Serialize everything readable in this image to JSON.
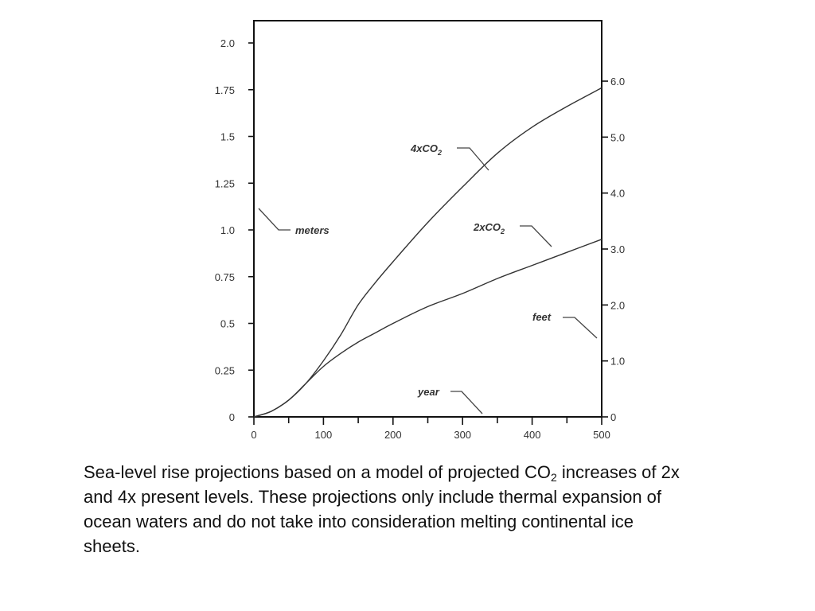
{
  "chart_data": {
    "type": "line",
    "x": [
      0,
      25,
      50,
      75,
      100,
      125,
      150,
      175,
      200,
      250,
      300,
      350,
      400,
      450,
      500
    ],
    "xlim": [
      0,
      500
    ],
    "xticks": [
      0,
      100,
      200,
      300,
      400,
      500
    ],
    "x_minor_ticks": [
      50,
      150,
      250,
      350,
      450
    ],
    "ylim_left": [
      0,
      2.0
    ],
    "yticks_left": [
      "0",
      "0.25",
      "0.5",
      "0.75",
      "1.0",
      "1.25",
      "1.5",
      "1.75",
      "2.0"
    ],
    "ylim_right": [
      0,
      6.56
    ],
    "yticks_right": [
      "0",
      "1.0",
      "2.0",
      "3.0",
      "4.0",
      "5.0",
      "6.0"
    ],
    "series": [
      {
        "name": "4xCO2",
        "values": [
          0,
          0.03,
          0.09,
          0.18,
          0.3,
          0.44,
          0.6,
          0.72,
          0.83,
          1.04,
          1.23,
          1.41,
          1.55,
          1.66,
          1.76
        ]
      },
      {
        "name": "2xCO2",
        "values": [
          0,
          0.03,
          0.09,
          0.18,
          0.27,
          0.34,
          0.4,
          0.45,
          0.5,
          0.59,
          0.66,
          0.74,
          0.81,
          0.88,
          0.95
        ]
      }
    ],
    "annotations": {
      "meters": "meters",
      "feet": "feet",
      "year": "year",
      "s4_main": "4xCO",
      "s4_sub": "2",
      "s2_main": "2xCO",
      "s2_sub": "2"
    },
    "grid": false,
    "legend": "none"
  },
  "caption": {
    "part1": "Sea-level rise projections based on a model of projected CO",
    "sub": "2",
    "part2": " increases of 2x and 4x present levels. These projections only include thermal expansion of ocean waters and do not take into consideration melting continental ice sheets."
  }
}
